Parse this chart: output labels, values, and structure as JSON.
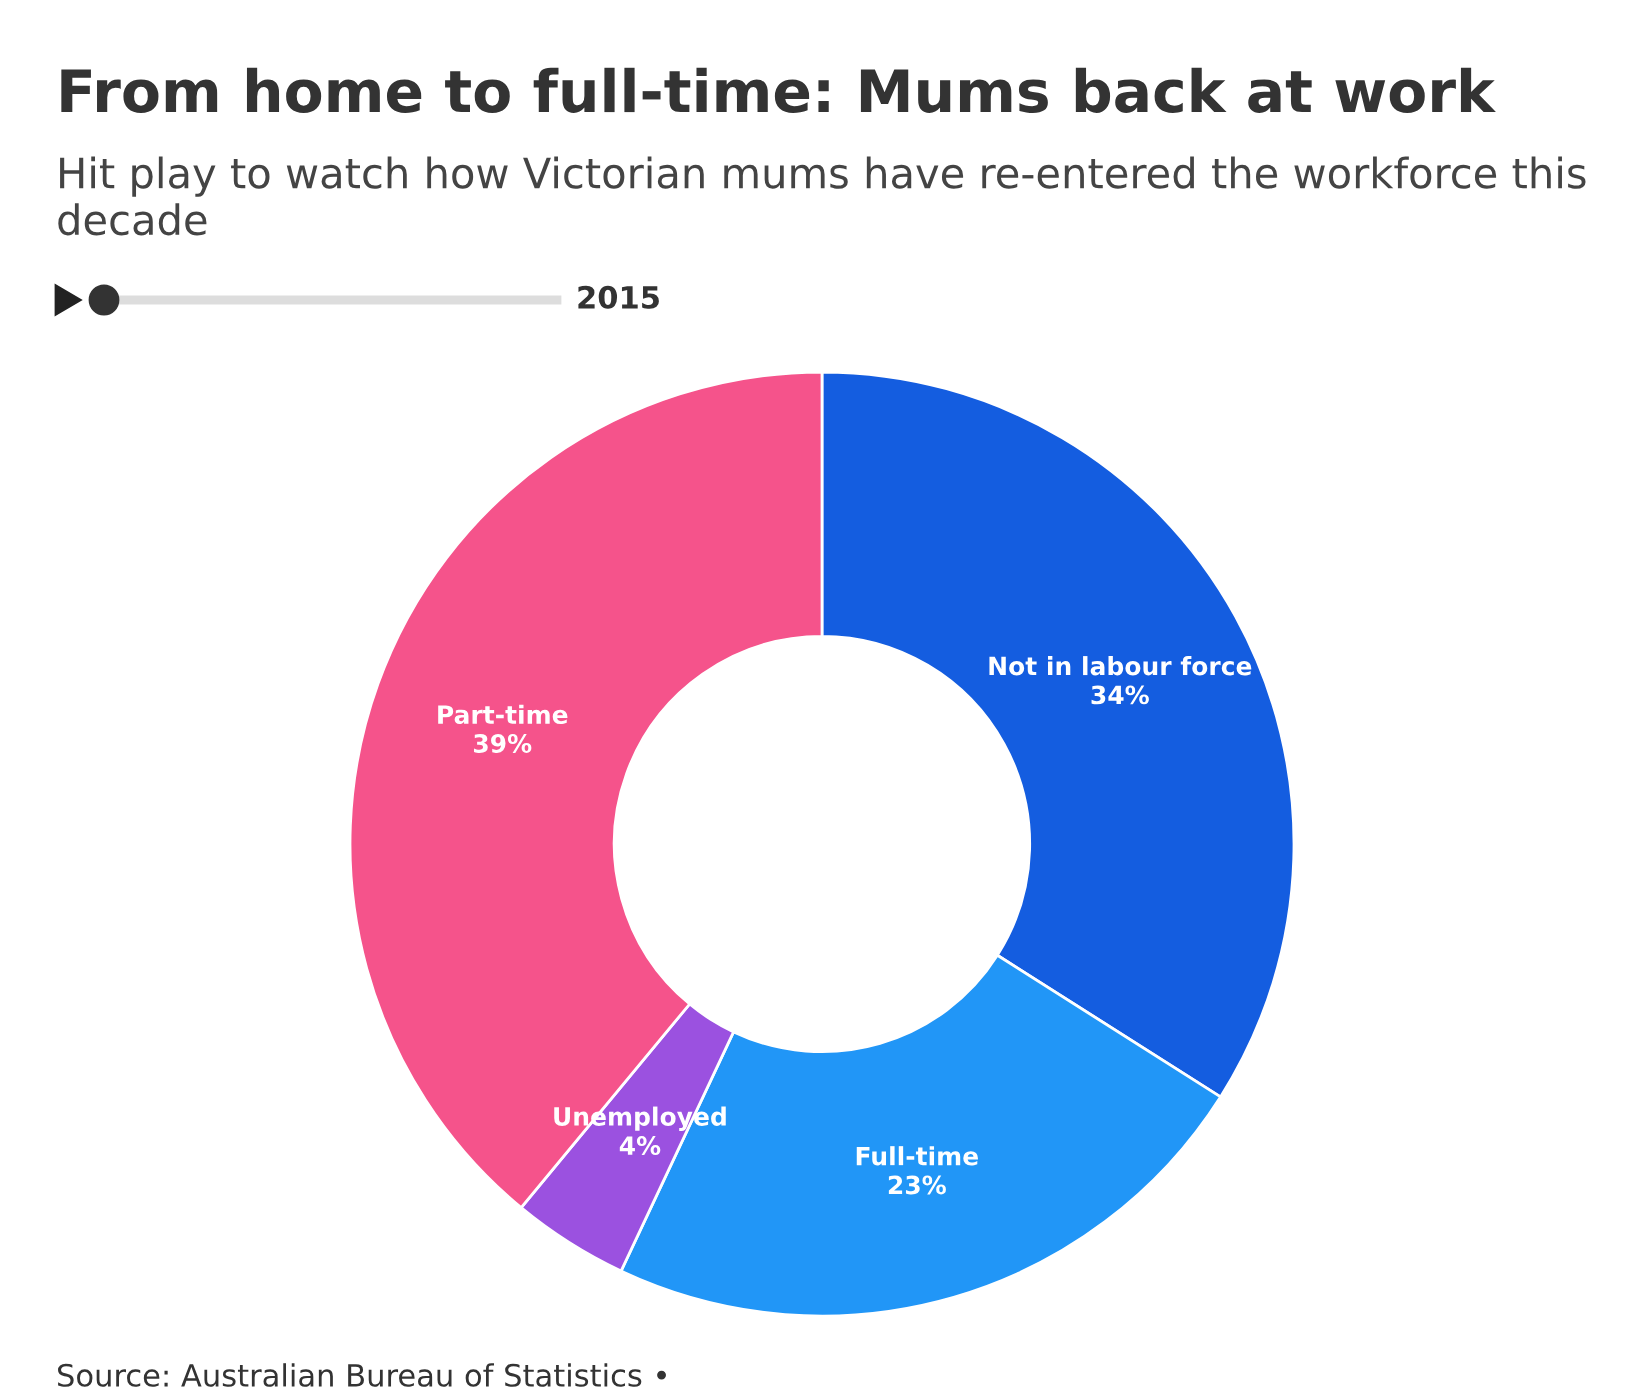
{
  "chart_data": {
    "type": "donut",
    "title": "From home to full-time: Mums back at work",
    "subtitle": "Hit play to watch how Victorian mums have re-entered the workforce this decade",
    "categories": [
      "Not in labour force",
      "Full-time",
      "Unemployed",
      "Part-time"
    ],
    "values": [
      34,
      23,
      4,
      39
    ],
    "colors": [
      "#145de0",
      "#2196f7",
      "#9b51e0",
      "#f5538b"
    ],
    "value_labels": [
      "34%",
      "23%",
      "4%",
      "39%"
    ],
    "legend": false,
    "annotations": [
      "2015",
      "Source: Australian Bureau of Statistics •"
    ]
  }
}
